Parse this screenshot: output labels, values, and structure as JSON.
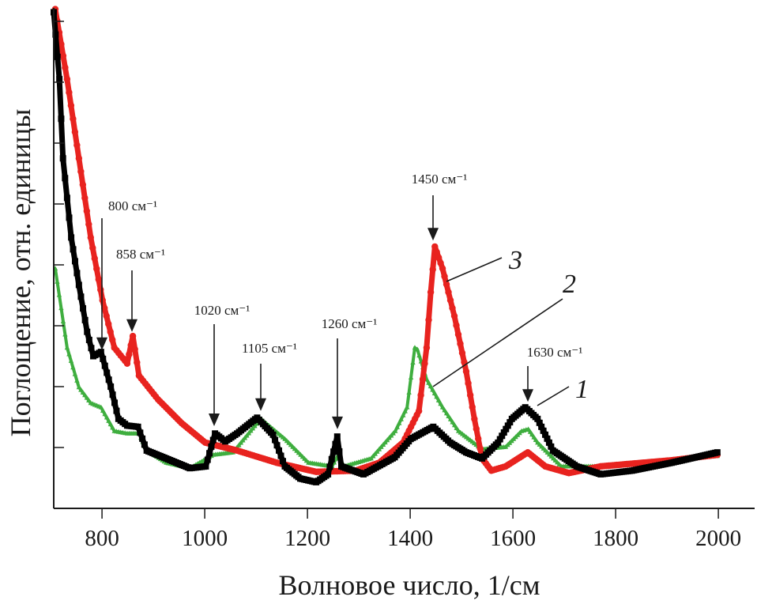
{
  "chart_data": {
    "type": "scatter",
    "title": "",
    "xlabel": "Волновое число, 1/см",
    "ylabel": "Поглощение, отн. единицы",
    "xlim": [
      706,
      2070
    ],
    "ylim": [
      0,
      8.4
    ],
    "xticks": [
      800,
      1000,
      1200,
      1400,
      1600,
      1800,
      2000
    ],
    "xtick_labels": [
      "800",
      "1000",
      "1200",
      "1400",
      "1600",
      "1800",
      "2000"
    ],
    "yticks": [
      1,
      2,
      3,
      4,
      5,
      6,
      7,
      8
    ],
    "ytick_labels": [],
    "grid": false,
    "legend": "none",
    "series": [
      {
        "name": "1",
        "color": "#000000",
        "marker": "square",
        "x": [
          706,
          717,
          724,
          740,
          755,
          771,
          783,
          798,
          817,
          832,
          849,
          870,
          887,
          925,
          971,
          1002,
          1020,
          1040,
          1063,
          1102,
          1133,
          1156,
          1186,
          1217,
          1240,
          1258,
          1266,
          1309,
          1370,
          1401,
          1445,
          1478,
          1509,
          1540,
          1571,
          1598,
          1624,
          1648,
          1678,
          1724,
          1771,
          1832,
          1909,
          1998
        ],
        "y": [
          8.15,
          7.05,
          5.75,
          4.45,
          3.67,
          2.9,
          2.5,
          2.57,
          2.0,
          1.47,
          1.36,
          1.34,
          0.95,
          0.82,
          0.66,
          0.69,
          1.23,
          1.1,
          1.23,
          1.49,
          1.21,
          0.69,
          0.49,
          0.43,
          0.56,
          1.18,
          0.69,
          0.56,
          0.84,
          1.14,
          1.34,
          1.08,
          0.92,
          0.82,
          1.08,
          1.47,
          1.66,
          1.47,
          0.95,
          0.69,
          0.56,
          0.62,
          0.75,
          0.92
        ]
      },
      {
        "name": "2",
        "color": "#3fae3f",
        "marker": "triangle",
        "x": [
          709,
          732,
          755,
          778,
          798,
          824,
          849,
          872,
          887,
          925,
          971,
          1017,
          1055,
          1109,
          1156,
          1202,
          1248,
          1260,
          1271,
          1324,
          1371,
          1394,
          1409,
          1414,
          1432,
          1463,
          1494,
          1540,
          1586,
          1617,
          1630,
          1648,
          1694,
          1771,
          1909,
          1998
        ],
        "y": [
          3.94,
          2.64,
          1.99,
          1.73,
          1.66,
          1.27,
          1.23,
          1.23,
          0.95,
          0.75,
          0.66,
          0.88,
          0.92,
          1.47,
          1.14,
          0.75,
          0.69,
          0.88,
          0.69,
          0.82,
          1.27,
          1.66,
          2.64,
          2.61,
          2.12,
          1.66,
          1.27,
          0.97,
          1.01,
          1.27,
          1.3,
          1.08,
          0.69,
          0.69,
          0.79,
          0.86
        ]
      },
      {
        "name": "3",
        "color": "#e8231f",
        "marker": "circle",
        "x": [
          709,
          732,
          755,
          778,
          801,
          824,
          849,
          860,
          872,
          909,
          955,
          1001,
          1063,
          1140,
          1217,
          1294,
          1340,
          1386,
          1417,
          1432,
          1440,
          1448,
          1463,
          1486,
          1509,
          1525,
          1540,
          1558,
          1586,
          1629,
          1663,
          1709,
          1771,
          1909,
          1998
        ],
        "y": [
          8.2,
          7.05,
          5.75,
          4.45,
          3.42,
          2.64,
          2.38,
          2.83,
          2.18,
          1.79,
          1.4,
          1.08,
          0.95,
          0.75,
          0.6,
          0.62,
          0.75,
          1.08,
          1.6,
          2.64,
          3.55,
          4.3,
          3.94,
          3.16,
          2.25,
          1.47,
          0.82,
          0.62,
          0.69,
          0.92,
          0.69,
          0.58,
          0.69,
          0.79,
          0.88
        ]
      }
    ],
    "annotations": [
      {
        "text": "800 см⁻¹",
        "x": 800,
        "arrow_to": 2.6
      },
      {
        "text": "858 см⁻¹",
        "x": 858,
        "arrow_to": 2.9
      },
      {
        "text": "1020 см⁻¹",
        "x": 1020,
        "arrow_to": 1.35
      },
      {
        "text": "1105 см⁻¹",
        "x": 1105,
        "arrow_to": 1.6
      },
      {
        "text": "1260 см⁻¹",
        "x": 1260,
        "arrow_to": 1.3
      },
      {
        "text": "1450 см⁻¹",
        "x": 1450,
        "arrow_to": 4.4
      },
      {
        "text": "1630 см⁻¹",
        "x": 1630,
        "arrow_to": 1.75
      }
    ],
    "curve_labels": [
      {
        "text": "1",
        "series": "1"
      },
      {
        "text": "2",
        "series": "2"
      },
      {
        "text": "3",
        "series": "3"
      }
    ]
  }
}
